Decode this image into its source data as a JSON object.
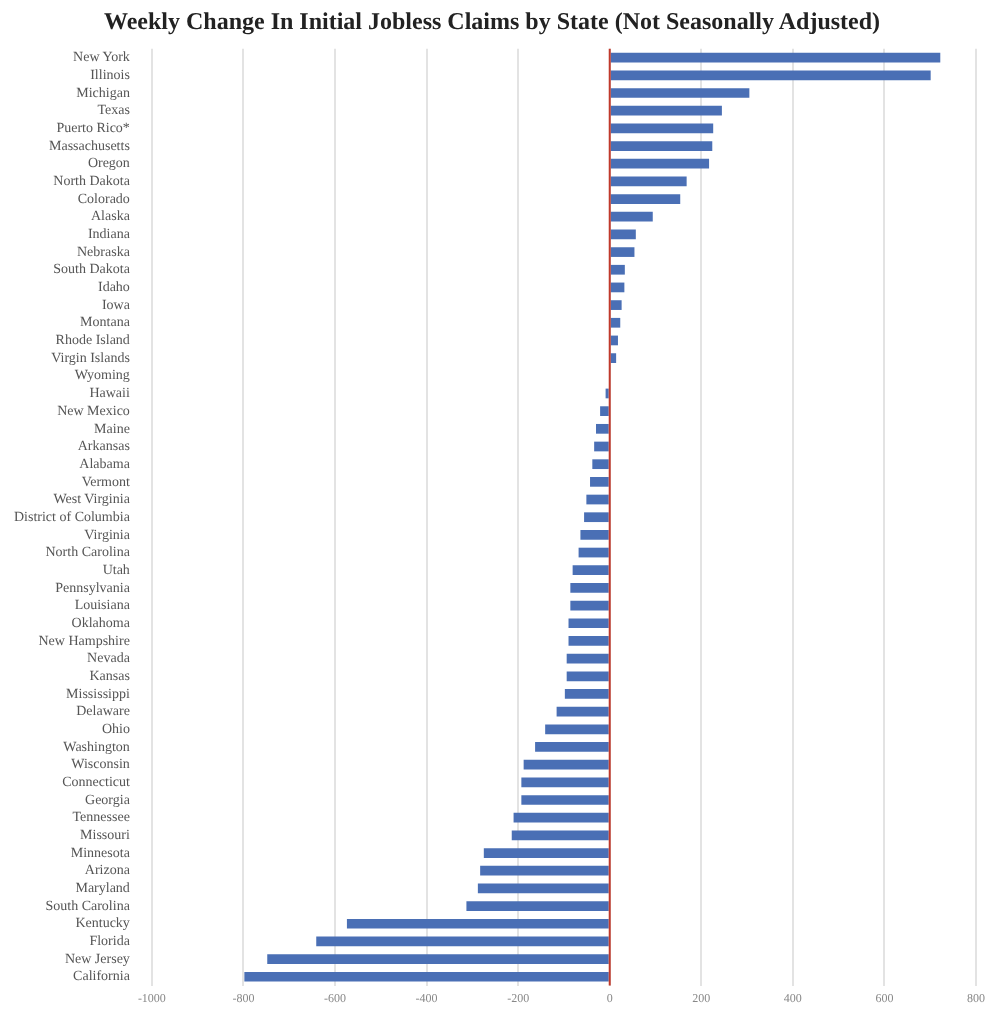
{
  "chart_data": {
    "type": "bar",
    "orientation": "horizontal",
    "title": "Weekly Change In Initial Jobless Claims by State (Not Seasonally Adjusted)",
    "categories": [
      "New York",
      "Illinois",
      "Michigan",
      "Texas",
      "Puerto Rico*",
      "Massachusetts",
      "Oregon",
      "North Dakota",
      "Colorado",
      "Alaska",
      "Indiana",
      "Nebraska",
      "South Dakota",
      "Idaho",
      "Iowa",
      "Montana",
      "Rhode Island",
      "Virgin Islands",
      "Wyoming",
      "Hawaii",
      "New Mexico",
      "Maine",
      "Arkansas",
      "Alabama",
      "Vermont",
      "West Virginia",
      "District of Columbia",
      "Virginia",
      "North Carolina",
      "Utah",
      "Pennsylvania",
      "Louisiana",
      "Oklahoma",
      "New Hampshire",
      "Nevada",
      "Kansas",
      "Mississippi",
      "Delaware",
      "Ohio",
      "Washington",
      "Wisconsin",
      "Connecticut",
      "Georgia",
      "Tennessee",
      "Missouri",
      "Minnesota",
      "Arizona",
      "Maryland",
      "South Carolina",
      "Kentucky",
      "Florida",
      "New Jersey",
      "California"
    ],
    "values": [
      722,
      701,
      305,
      245,
      226,
      224,
      217,
      168,
      154,
      94,
      57,
      54,
      33,
      32,
      26,
      23,
      18,
      14,
      null,
      -9,
      -21,
      -30,
      -34,
      -38,
      -43,
      -51,
      -56,
      -64,
      -68,
      -81,
      -86,
      -86,
      -90,
      -90,
      -94,
      -94,
      -98,
      -116,
      -141,
      -163,
      -188,
      -193,
      -193,
      -210,
      -214,
      -275,
      -283,
      -288,
      -313,
      -574,
      -641,
      -748,
      -798
    ],
    "color": "#4a6fb5",
    "xlim": [
      -1000,
      800
    ],
    "xticks": [
      -1000,
      -800,
      -600,
      -400,
      -200,
      0,
      200,
      400,
      600,
      800
    ],
    "grid": "x",
    "ref_lines": [
      {
        "axis": "x",
        "value": 0,
        "color": "#c0392b"
      }
    ]
  }
}
